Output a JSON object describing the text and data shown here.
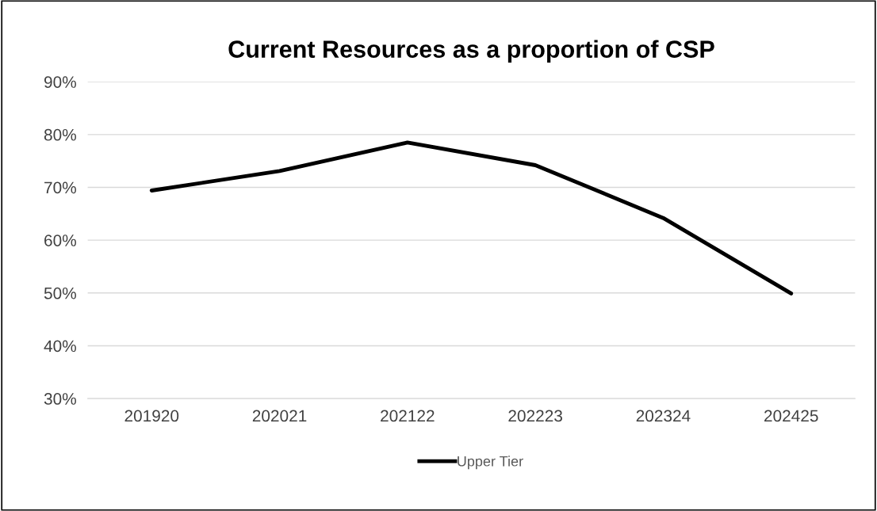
{
  "chart_data": {
    "type": "line",
    "title": "Current Resources as a proportion of CSP",
    "categories": [
      "201920",
      "202021",
      "202122",
      "202223",
      "202324",
      "202425"
    ],
    "series": [
      {
        "name": "Upper Tier",
        "color": "#000000",
        "values": [
          69.4,
          73.1,
          78.5,
          74.2,
          64.2,
          49.9
        ]
      }
    ],
    "ylim": [
      30,
      90
    ],
    "yticks": [
      {
        "value": 30,
        "label": "30%"
      },
      {
        "value": 40,
        "label": "40%"
      },
      {
        "value": 50,
        "label": "50%"
      },
      {
        "value": 60,
        "label": "60%"
      },
      {
        "value": 70,
        "label": "70%"
      },
      {
        "value": 80,
        "label": "80%"
      },
      {
        "value": 90,
        "label": "90%"
      }
    ],
    "grid": "y",
    "legend": "bottom",
    "marker": "none",
    "line_style": "solid"
  }
}
